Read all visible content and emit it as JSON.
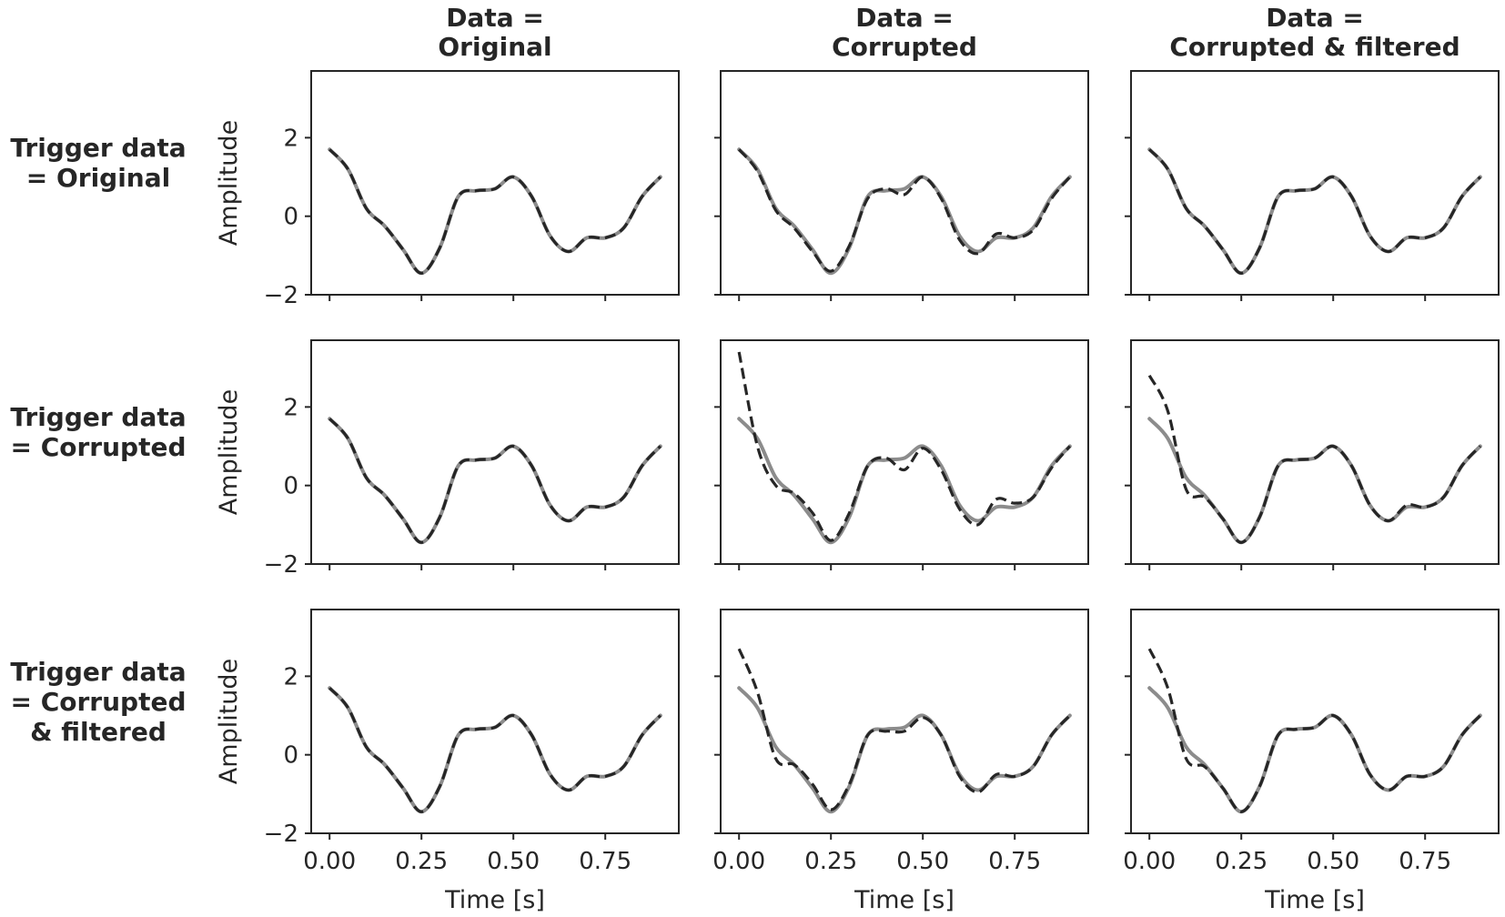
{
  "figure": {
    "column_titles": [
      [
        "Data =",
        "Original"
      ],
      [
        "Data =",
        "Corrupted"
      ],
      [
        "Data =",
        "Corrupted & filtered"
      ]
    ],
    "row_titles": [
      [
        "Trigger data",
        "= Original"
      ],
      [
        "Trigger data",
        "= Corrupted"
      ],
      [
        "Trigger data",
        "= Corrupted",
        "& filtered"
      ]
    ],
    "colors": {
      "reference": "#8c8c8c",
      "overlay": "#262626",
      "frame": "#262626"
    }
  },
  "chart_data": {
    "type": "line",
    "layout": "3x3 grid of subplots (rows = trigger data, columns = data)",
    "xlabel": "Time [s]",
    "ylabel": "Amplitude",
    "xlim": [
      -0.05,
      0.95
    ],
    "ylim": [
      -2,
      3.7
    ],
    "x_ticks": [
      0.0,
      0.25,
      0.5,
      0.75
    ],
    "x_tick_labels": [
      "0.00",
      "0.25",
      "0.50",
      "0.75"
    ],
    "y_ticks": [
      2,
      0,
      -2
    ],
    "y_tick_labels": [
      "2",
      "0",
      "−2"
    ],
    "grid": false,
    "legend": "none",
    "x": [
      0.0,
      0.05,
      0.1,
      0.15,
      0.2,
      0.25,
      0.3,
      0.35,
      0.4,
      0.45,
      0.5,
      0.55,
      0.6,
      0.65,
      0.7,
      0.75,
      0.8,
      0.85,
      0.9
    ],
    "reference_series": {
      "style": "solid gray",
      "values": [
        1.7,
        1.2,
        0.2,
        -0.25,
        -0.85,
        -1.45,
        -0.8,
        0.5,
        0.65,
        0.7,
        1.0,
        0.5,
        -0.5,
        -0.9,
        -0.55,
        -0.55,
        -0.3,
        0.5,
        1.0
      ]
    },
    "panels": [
      {
        "row": 0,
        "col": 0,
        "overlay_values": [
          1.7,
          1.2,
          0.2,
          -0.25,
          -0.85,
          -1.45,
          -0.8,
          0.5,
          0.65,
          0.7,
          1.0,
          0.5,
          -0.5,
          -0.9,
          -0.55,
          -0.55,
          -0.3,
          0.5,
          1.0
        ]
      },
      {
        "row": 0,
        "col": 1,
        "overlay_values": [
          1.7,
          1.15,
          0.15,
          -0.3,
          -0.9,
          -1.4,
          -0.75,
          0.45,
          0.7,
          0.55,
          1.0,
          0.45,
          -0.6,
          -0.95,
          -0.45,
          -0.55,
          -0.35,
          0.45,
          1.0
        ]
      },
      {
        "row": 0,
        "col": 2,
        "overlay_values": [
          1.7,
          1.2,
          0.2,
          -0.25,
          -0.85,
          -1.45,
          -0.8,
          0.5,
          0.65,
          0.7,
          1.0,
          0.5,
          -0.5,
          -0.9,
          -0.55,
          -0.55,
          -0.3,
          0.5,
          1.0
        ]
      },
      {
        "row": 1,
        "col": 0,
        "overlay_values": [
          1.7,
          1.2,
          0.2,
          -0.25,
          -0.85,
          -1.45,
          -0.8,
          0.5,
          0.65,
          0.7,
          1.0,
          0.5,
          -0.5,
          -0.9,
          -0.55,
          -0.55,
          -0.3,
          0.5,
          1.0
        ]
      },
      {
        "row": 1,
        "col": 1,
        "overlay_values": [
          3.4,
          1.0,
          0.0,
          -0.2,
          -0.7,
          -1.4,
          -0.7,
          0.5,
          0.7,
          0.4,
          0.95,
          0.4,
          -0.6,
          -1.0,
          -0.35,
          -0.45,
          -0.3,
          0.45,
          1.0
        ]
      },
      {
        "row": 1,
        "col": 2,
        "overlay_values": [
          2.8,
          1.9,
          -0.1,
          -0.3,
          -0.85,
          -1.45,
          -0.8,
          0.5,
          0.65,
          0.7,
          1.0,
          0.5,
          -0.5,
          -0.9,
          -0.5,
          -0.55,
          -0.3,
          0.5,
          1.0
        ]
      },
      {
        "row": 2,
        "col": 0,
        "overlay_values": [
          1.7,
          1.2,
          0.2,
          -0.25,
          -0.85,
          -1.45,
          -0.8,
          0.5,
          0.65,
          0.7,
          1.0,
          0.5,
          -0.5,
          -0.9,
          -0.55,
          -0.55,
          -0.3,
          0.5,
          1.0
        ]
      },
      {
        "row": 2,
        "col": 1,
        "overlay_values": [
          2.7,
          1.6,
          -0.1,
          -0.25,
          -0.75,
          -1.4,
          -0.75,
          0.5,
          0.6,
          0.6,
          0.95,
          0.5,
          -0.55,
          -0.95,
          -0.5,
          -0.55,
          -0.3,
          0.5,
          1.0
        ]
      },
      {
        "row": 2,
        "col": 2,
        "overlay_values": [
          2.7,
          1.7,
          -0.1,
          -0.3,
          -0.85,
          -1.45,
          -0.8,
          0.5,
          0.65,
          0.7,
          1.0,
          0.5,
          -0.5,
          -0.9,
          -0.55,
          -0.55,
          -0.3,
          0.5,
          1.0
        ]
      }
    ]
  }
}
